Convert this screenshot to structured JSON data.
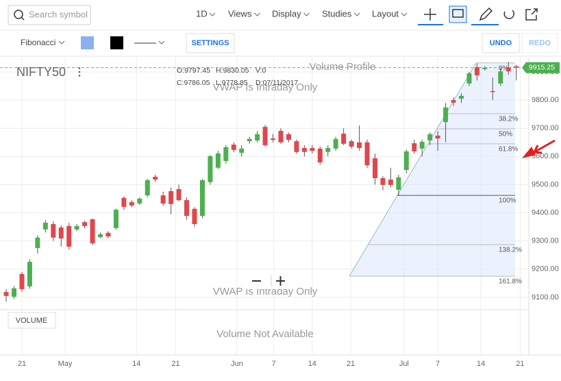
{
  "toolbar": {
    "search_placeholder": "Search symbol",
    "interval": "1D",
    "menus": [
      "Views",
      "Display",
      "Studies",
      "Layout"
    ]
  },
  "drawing_bar": {
    "tool": "Fibonacci",
    "settings": "SETTINGS",
    "undo": "UNDO",
    "redo": "REDO"
  },
  "chart_data": {
    "type": "candlestick",
    "symbol": "NIFTY50",
    "ohlc_info": [
      "O:9797.45",
      "H:9830.05",
      "V:0",
      "C:9786.05",
      "L:9778.85",
      "D:07/11/2017"
    ],
    "overlay_messages": [
      "Volume Profile",
      "VWAP Is Intraday Only",
      "VWAP Is Intraday Only"
    ],
    "x": [
      0,
      1,
      2,
      3,
      4,
      5,
      6,
      7,
      8,
      9,
      10,
      11,
      12,
      13,
      14,
      15,
      16,
      17,
      18,
      19,
      20,
      21,
      22,
      23,
      24,
      25,
      26,
      27,
      28,
      29,
      30,
      31,
      32,
      33,
      34,
      35,
      36,
      37,
      38,
      39,
      40,
      41,
      42,
      43,
      44,
      45,
      46,
      47,
      48,
      49,
      50,
      51,
      52,
      53,
      54,
      55,
      56,
      57,
      58,
      59,
      60,
      61,
      62,
      63,
      64,
      65
    ],
    "open": [
      9119,
      9102,
      9183,
      9139,
      9275,
      9341,
      9360,
      9348,
      9353,
      9341,
      9367,
      9377,
      9314,
      9329,
      9346,
      9453,
      9438,
      9433,
      9462,
      9528,
      9462,
      9477,
      9484,
      9445,
      9414,
      9389,
      9509,
      9560,
      9584,
      9642,
      9613,
      9654,
      9657,
      9705,
      9664,
      9691,
      9679,
      9654,
      9630,
      9630,
      9628,
      9616,
      9628,
      9681,
      9654,
      9650,
      9650,
      9594,
      9523,
      9518,
      9482,
      9552,
      9647,
      9628,
      9657,
      9674,
      9722,
      9800,
      9805,
      9859,
      9917,
      9910,
      9832,
      9859,
      9917,
      9920
    ],
    "high": [
      9129,
      9140,
      9190,
      9235,
      9320,
      9375,
      9370,
      9355,
      9365,
      9360,
      9372,
      9380,
      9330,
      9335,
      9415,
      9458,
      9445,
      9455,
      9520,
      9535,
      9475,
      9490,
      9500,
      9455,
      9420,
      9520,
      9605,
      9620,
      9640,
      9650,
      9640,
      9670,
      9690,
      9712,
      9680,
      9700,
      9685,
      9660,
      9640,
      9640,
      9635,
      9640,
      9670,
      9700,
      9660,
      9710,
      9660,
      9610,
      9530,
      9560,
      9535,
      9625,
      9660,
      9660,
      9685,
      9690,
      9790,
      9810,
      9825,
      9900,
      9930,
      9920,
      9880,
      9915,
      9935,
      9925
    ],
    "low": [
      9085,
      9095,
      9120,
      9130,
      9255,
      9330,
      9300,
      9280,
      9270,
      9335,
      9345,
      9285,
      9310,
      9310,
      9340,
      9410,
      9420,
      9428,
      9455,
      9510,
      9425,
      9395,
      9440,
      9375,
      9350,
      9380,
      9500,
      9555,
      9575,
      9615,
      9600,
      9645,
      9650,
      9635,
      9650,
      9645,
      9650,
      9610,
      9600,
      9610,
      9570,
      9600,
      9620,
      9640,
      9628,
      9620,
      9560,
      9500,
      9480,
      9490,
      9460,
      9540,
      9610,
      9600,
      9640,
      9620,
      9650,
      9780,
      9790,
      9850,
      9870,
      9905,
      9800,
      9850,
      9890,
      9870
    ],
    "close": [
      9105,
      9132,
      9129,
      9226,
      9312,
      9365,
      9312,
      9309,
      9280,
      9353,
      9353,
      9292,
      9324,
      9316,
      9411,
      9421,
      9426,
      9450,
      9516,
      9518,
      9433,
      9431,
      9445,
      9389,
      9360,
      9516,
      9601,
      9611,
      9633,
      9623,
      9628,
      9662,
      9679,
      9640,
      9659,
      9650,
      9659,
      9616,
      9616,
      9620,
      9579,
      9630,
      9662,
      9645,
      9635,
      9630,
      9569,
      9523,
      9499,
      9499,
      9526,
      9618,
      9618,
      9652,
      9679,
      9664,
      9774,
      9791,
      9815,
      9895,
      9888,
      9915,
      9830,
      9902,
      9902,
      9915.25
    ],
    "last_price_label": "9915.25",
    "up_color": "#4caf50",
    "down_color": "#e0474c",
    "xlim": [
      -0.79,
      66.6
    ],
    "xticks": [
      {
        "value": 2,
        "label": "21"
      },
      {
        "value": 7.5,
        "label": "May"
      },
      {
        "value": 16.6,
        "label": "14"
      },
      {
        "value": 21.6,
        "label": "21"
      },
      {
        "value": 29.4,
        "label": "Jun"
      },
      {
        "value": 34.1,
        "label": "7"
      },
      {
        "value": 39,
        "label": "14"
      },
      {
        "value": 43.9,
        "label": "21"
      },
      {
        "value": 50.7,
        "label": "Jul"
      },
      {
        "value": 55,
        "label": "7"
      },
      {
        "value": 60.5,
        "label": "14"
      },
      {
        "value": 65.5,
        "label": "21"
      }
    ],
    "ylim": [
      9056,
      9951
    ],
    "yticks": [
      {
        "value": 9100,
        "label": "9100.00"
      },
      {
        "value": 9200,
        "label": "9200.00"
      },
      {
        "value": 9300,
        "label": "9300.00"
      },
      {
        "value": 9400,
        "label": "9400.00"
      },
      {
        "value": 9500,
        "label": "9500.00"
      },
      {
        "value": 9600,
        "label": "9600.00"
      },
      {
        "value": 9700,
        "label": "9700.00"
      },
      {
        "value": 9800,
        "label": "9800.00"
      },
      {
        "value": 9900,
        "label": "9900.00"
      }
    ],
    "grid": true,
    "fibonacci": [
      {
        "value": 9932,
        "label": "0%"
      },
      {
        "value": 9752,
        "label": "38.2%"
      },
      {
        "value": 9698,
        "label": "50%"
      },
      {
        "value": 9645,
        "label": "61.8%"
      },
      {
        "value": 9462,
        "label": "100%"
      },
      {
        "value": 9287,
        "label": "138.2%"
      },
      {
        "value": 9175,
        "label": "161.8%"
      }
    ],
    "volume": {
      "button": "VOLUME",
      "message": "Volume Not Available"
    }
  }
}
